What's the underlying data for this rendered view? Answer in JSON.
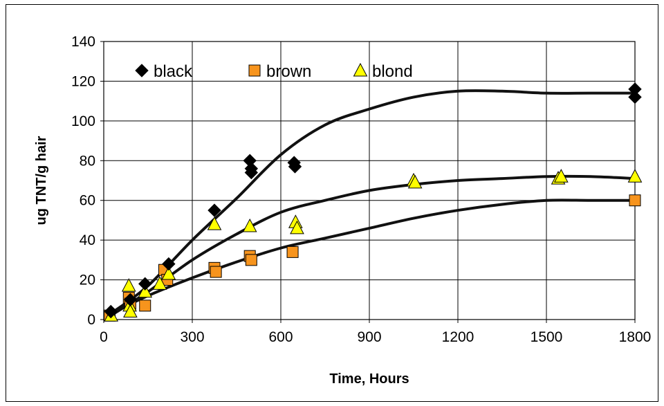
{
  "chart_data": {
    "type": "scatter",
    "xlabel": "Time, Hours",
    "ylabel": "ug TNT/g hair",
    "xlim": [
      0,
      1800
    ],
    "ylim": [
      0,
      140
    ],
    "xticks": [
      0,
      300,
      600,
      900,
      1200,
      1500,
      1800
    ],
    "yticks": [
      0,
      20,
      40,
      60,
      80,
      100,
      120,
      140
    ],
    "grid": true,
    "legend": "top-left",
    "series": [
      {
        "name": "black",
        "marker": "diamond",
        "color": "#000000",
        "points": [
          [
            24,
            4
          ],
          [
            90,
            10
          ],
          [
            140,
            18
          ],
          [
            220,
            28
          ],
          [
            375,
            55
          ],
          [
            495,
            80
          ],
          [
            500,
            76
          ],
          [
            500,
            74
          ],
          [
            645,
            79
          ],
          [
            648,
            77
          ],
          [
            1800,
            116
          ],
          [
            1800,
            112
          ]
        ],
        "trend": [
          [
            24,
            3
          ],
          [
            150,
            17
          ],
          [
            300,
            40
          ],
          [
            450,
            61
          ],
          [
            600,
            83
          ],
          [
            750,
            98
          ],
          [
            900,
            106
          ],
          [
            1050,
            112
          ],
          [
            1200,
            115
          ],
          [
            1350,
            115
          ],
          [
            1500,
            114
          ],
          [
            1650,
            114
          ],
          [
            1800,
            114
          ]
        ]
      },
      {
        "name": "brown",
        "marker": "square",
        "color": "#F7941D",
        "points": [
          [
            20,
            2
          ],
          [
            85,
            11
          ],
          [
            90,
            8
          ],
          [
            140,
            7
          ],
          [
            205,
            25
          ],
          [
            215,
            20
          ],
          [
            375,
            26
          ],
          [
            380,
            24
          ],
          [
            495,
            32
          ],
          [
            500,
            30
          ],
          [
            640,
            34
          ],
          [
            1800,
            60
          ]
        ],
        "trend": [
          [
            24,
            3
          ],
          [
            150,
            12
          ],
          [
            300,
            21
          ],
          [
            450,
            29
          ],
          [
            600,
            36
          ],
          [
            750,
            41
          ],
          [
            900,
            46
          ],
          [
            1050,
            51
          ],
          [
            1200,
            55
          ],
          [
            1350,
            58
          ],
          [
            1500,
            60
          ],
          [
            1650,
            60
          ],
          [
            1800,
            60
          ]
        ]
      },
      {
        "name": "blond",
        "marker": "triangle",
        "color": "#FFFF00",
        "points": [
          [
            25,
            2
          ],
          [
            85,
            17
          ],
          [
            88,
            7
          ],
          [
            90,
            4
          ],
          [
            140,
            14
          ],
          [
            190,
            18
          ],
          [
            220,
            23
          ],
          [
            375,
            48
          ],
          [
            495,
            47
          ],
          [
            650,
            49
          ],
          [
            655,
            46
          ],
          [
            1050,
            70
          ],
          [
            1055,
            69
          ],
          [
            1540,
            71
          ],
          [
            1550,
            72
          ],
          [
            1800,
            72
          ]
        ],
        "trend": [
          [
            24,
            2
          ],
          [
            150,
            14
          ],
          [
            300,
            30
          ],
          [
            450,
            43
          ],
          [
            600,
            54
          ],
          [
            750,
            60
          ],
          [
            900,
            65
          ],
          [
            1050,
            68
          ],
          [
            1200,
            70
          ],
          [
            1350,
            71
          ],
          [
            1500,
            72
          ],
          [
            1650,
            72
          ],
          [
            1800,
            71
          ]
        ]
      }
    ]
  }
}
